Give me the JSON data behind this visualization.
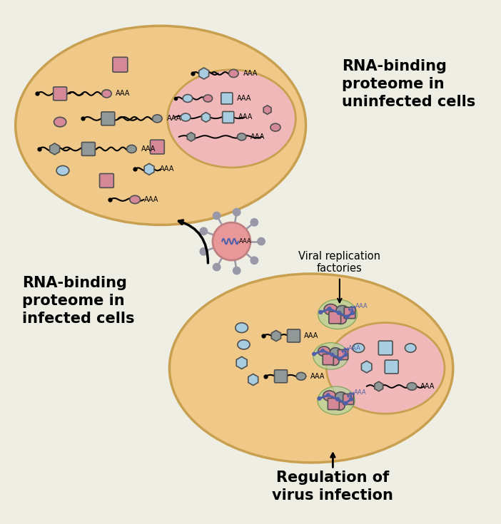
{
  "bg_color": "#eeeee4",
  "cell1_color": "#f0c888",
  "cell1_border": "#c8a050",
  "nucleus1_color": "#f0b8b8",
  "nucleus1_border": "#c8a050",
  "cell2_color": "#f0c888",
  "cell2_border": "#c8a050",
  "nucleus2_color": "#f0b8b8",
  "nucleus2_border": "#c8a050",
  "blue_color": "#a8cce0",
  "pink_color": "#d48898",
  "gray_color": "#909898",
  "light_gray": "#b0b8b8",
  "green_color": "#b8d4a0",
  "navy_color": "#5060a8",
  "virus_body": "#e89898",
  "virus_spike": "#9898a8",
  "text_color": "#1a1a1a",
  "title1": "RNA-binding\nproteome in\nuninfected cells",
  "title2": "RNA-binding\nproteome in\ninfected cells",
  "title3": "Viral replication\nfactories",
  "title4": "Regulation of\nvirus infection"
}
